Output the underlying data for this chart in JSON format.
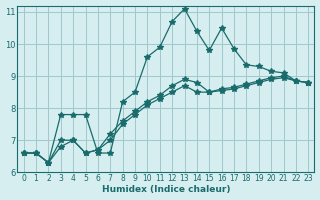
{
  "xlabel": "Humidex (Indice chaleur)",
  "ylabel": "",
  "background_color": "#d6eef0",
  "grid_color": "#a0c8cc",
  "line_color": "#1a6b6b",
  "xlim": [
    0,
    23
  ],
  "ylim": [
    6,
    11
  ],
  "yticks": [
    6,
    7,
    8,
    9,
    10,
    11
  ],
  "xticks": [
    0,
    1,
    2,
    3,
    4,
    5,
    6,
    7,
    8,
    9,
    10,
    11,
    12,
    13,
    14,
    15,
    16,
    17,
    18,
    19,
    20,
    21,
    22,
    23
  ],
  "series": [
    [
      6.6,
      6.6,
      6.3,
      7.8,
      7.8,
      7.8,
      6.6,
      6.6,
      8.2,
      8.5,
      9.6,
      9.9,
      10.7,
      11.1,
      10.4,
      9.8,
      10.5,
      9.85,
      9.35,
      9.3,
      9.15,
      9.1,
      8.85,
      8.8
    ],
    [
      6.6,
      6.6,
      6.3,
      7.0,
      7.0,
      6.6,
      6.7,
      7.0,
      7.5,
      7.8,
      8.1,
      8.3,
      8.5,
      8.7,
      8.5,
      8.5,
      8.55,
      8.6,
      8.7,
      8.8,
      8.9,
      8.95,
      8.85,
      8.8
    ],
    [
      6.6,
      6.6,
      6.3,
      6.8,
      7.0,
      6.6,
      6.7,
      7.2,
      7.6,
      7.9,
      8.2,
      8.4,
      8.7,
      8.9,
      8.8,
      8.5,
      8.6,
      8.65,
      8.75,
      8.85,
      8.95,
      9.0,
      8.85,
      8.8
    ]
  ]
}
